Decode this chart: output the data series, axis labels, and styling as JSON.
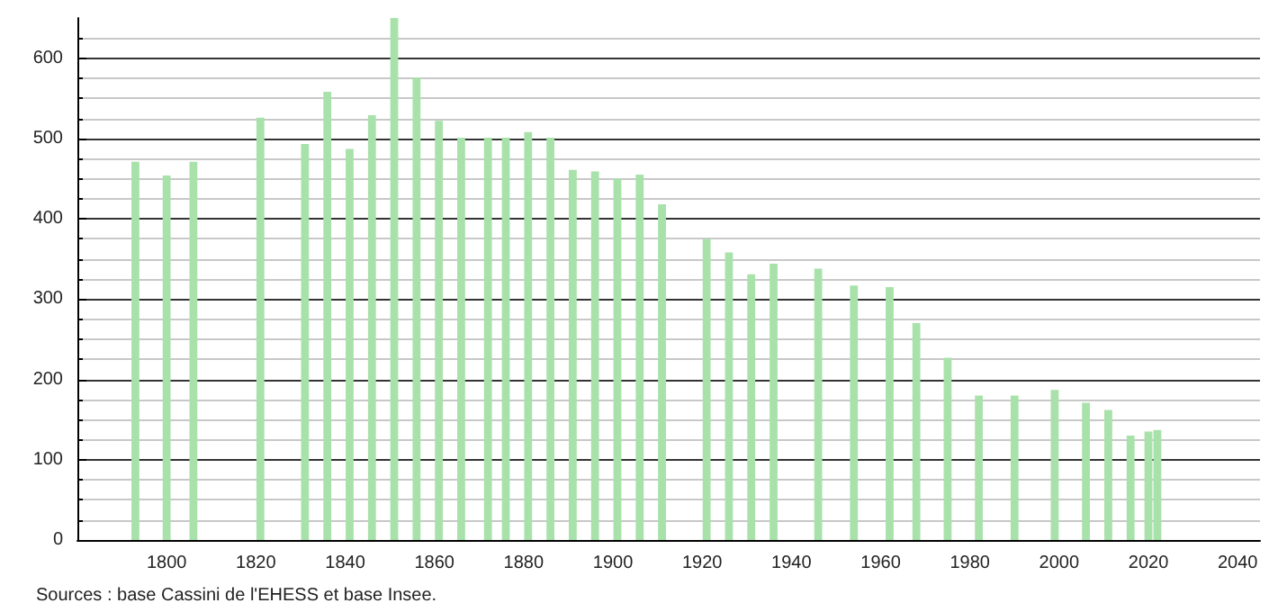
{
  "chart_data": {
    "type": "bar",
    "x": [
      1793,
      1800,
      1806,
      1821,
      1831,
      1836,
      1841,
      1846,
      1851,
      1856,
      1861,
      1866,
      1872,
      1876,
      1881,
      1886,
      1891,
      1896,
      1901,
      1906,
      1911,
      1921,
      1926,
      1931,
      1936,
      1946,
      1954,
      1962,
      1968,
      1975,
      1982,
      1990,
      1999,
      2006,
      2011,
      2016,
      2020,
      2022
    ],
    "values": [
      471,
      454,
      471,
      526,
      493,
      558,
      487,
      529,
      650,
      576,
      522,
      501,
      501,
      501,
      508,
      501,
      461,
      459,
      450,
      455,
      418,
      375,
      358,
      331,
      344,
      338,
      317,
      315,
      270,
      227,
      180,
      180,
      187,
      171,
      162,
      130,
      135,
      137
    ],
    "color": "#a8e2aa",
    "xlim": [
      1780,
      2045
    ],
    "xticks": [
      1800,
      1820,
      1840,
      1860,
      1880,
      1900,
      1920,
      1940,
      1960,
      1980,
      2000,
      2020,
      2040
    ],
    "ylim": [
      0,
      650
    ],
    "yticks": [
      0,
      100,
      200,
      300,
      400,
      500,
      600
    ],
    "grid": "y",
    "annotations": [
      "Sources : base Cassini de l'EHESS et base Insee."
    ]
  }
}
